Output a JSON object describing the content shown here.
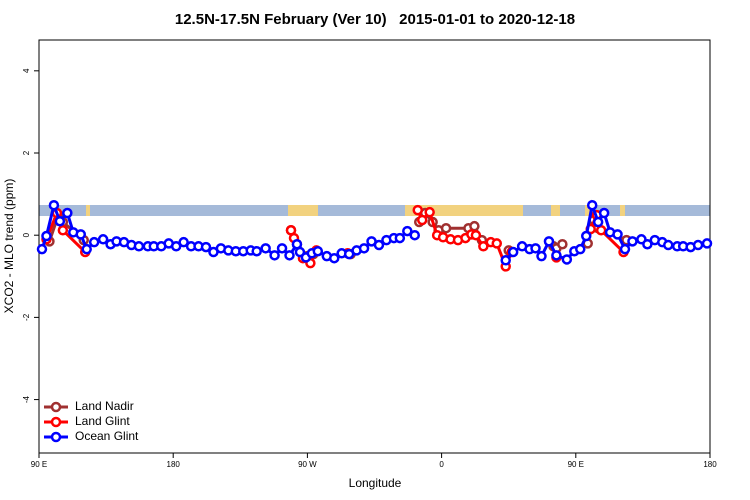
{
  "chart_data": {
    "type": "line",
    "title": "12.5N-17.5N February (Ver 10)   2015-01-01 to 2020-12-18",
    "x_label": "Longitude",
    "y_label": "XCO2 - MLO trend (ppm)",
    "xlim": [
      90,
      540
    ],
    "ylim": [
      -5.3,
      4.75
    ],
    "xticks": [
      {
        "value": 90,
        "label": "90 E"
      },
      180,
      {
        "value": 270,
        "label": "90 W"
      },
      {
        "value": 360,
        "label": "0"
      },
      {
        "value": 450,
        "label": "90 E"
      },
      180
    ],
    "yticks": [
      -4,
      -2,
      0,
      2,
      4
    ],
    "legend": "bottomleft",
    "series": [
      {
        "name": "Land Nadir",
        "color": "#a03030",
        "x": [
          97,
          103,
          106,
          120,
          null,
          259,
          263,
          270,
          274,
          null,
          299,
          null,
          345,
          349,
          354,
          358,
          363,
          378,
          382,
          387,
          null,
          405,
          null,
          435,
          437,
          441,
          null,
          458,
          462,
          465,
          484
        ],
        "values": [
          -0.15,
          0.49,
          0.32,
          -0.12,
          null,
          0.12,
          -0.22,
          -0.51,
          -0.46,
          null,
          -0.46,
          null,
          0.32,
          0.54,
          0.32,
          0.12,
          0.17,
          0.17,
          0.22,
          -0.12,
          null,
          -0.37,
          null,
          -0.27,
          -0.32,
          -0.22,
          null,
          -0.2,
          0.37,
          0.17,
          -0.12
        ]
      },
      {
        "name": "Land Glint",
        "color": "#ff0000",
        "x": [
          95,
          102,
          106,
          121,
          null,
          259,
          261,
          267,
          272,
          276,
          null,
          297,
          null,
          344,
          347,
          352,
          357,
          361,
          366,
          371,
          376,
          380,
          383,
          388,
          393,
          397,
          403,
          407,
          null,
          437,
          null,
          460,
          464,
          467,
          482
        ],
        "values": [
          -0.1,
          0.54,
          0.12,
          -0.41,
          null,
          0.12,
          -0.07,
          -0.56,
          -0.68,
          -0.37,
          null,
          -0.44,
          null,
          0.61,
          0.37,
          0.56,
          0,
          -0.05,
          -0.1,
          -0.12,
          -0.07,
          0.02,
          0,
          -0.27,
          -0.17,
          -0.2,
          -0.76,
          -0.41,
          null,
          -0.54,
          null,
          0.15,
          0.49,
          0.12,
          -0.41
        ]
      },
      {
        "name": "Ocean Glint",
        "color": "#0000ff",
        "x": [
          92,
          95,
          100,
          104,
          109,
          113,
          118,
          122,
          127,
          133,
          138,
          142,
          147,
          152,
          157,
          163,
          167,
          172,
          177,
          182,
          187,
          192,
          197,
          202,
          207,
          212,
          217,
          222,
          227,
          232,
          236,
          242,
          248,
          253,
          258,
          263,
          265,
          269,
          273,
          277,
          283,
          288,
          293,
          298,
          303,
          308,
          313,
          318,
          323,
          328,
          332,
          337,
          342,
          null,
          403,
          408,
          414,
          419,
          423,
          427,
          432,
          437,
          444,
          449,
          453,
          457,
          461,
          465,
          469,
          473,
          478,
          483,
          488,
          494,
          498,
          503,
          508,
          512,
          518,
          522,
          527,
          532,
          538
        ],
        "values": [
          -0.34,
          -0.02,
          0.73,
          0.34,
          0.54,
          0.07,
          0.02,
          -0.34,
          -0.17,
          -0.1,
          -0.22,
          -0.15,
          -0.17,
          -0.24,
          -0.27,
          -0.27,
          -0.27,
          -0.27,
          -0.2,
          -0.27,
          -0.17,
          -0.27,
          -0.27,
          -0.29,
          -0.41,
          -0.32,
          -0.37,
          -0.39,
          -0.39,
          -0.37,
          -0.39,
          -0.32,
          -0.49,
          -0.32,
          -0.49,
          -0.22,
          -0.41,
          -0.54,
          -0.44,
          -0.39,
          -0.51,
          -0.56,
          -0.44,
          -0.46,
          -0.37,
          -0.32,
          -0.15,
          -0.24,
          -0.12,
          -0.07,
          -0.07,
          0.1,
          0,
          null,
          -0.61,
          -0.41,
          -0.27,
          -0.34,
          -0.32,
          -0.51,
          -0.15,
          -0.49,
          -0.59,
          -0.39,
          -0.34,
          -0.02,
          0.73,
          0.32,
          0.54,
          0.07,
          0.02,
          -0.34,
          -0.15,
          -0.1,
          -0.22,
          -0.12,
          -0.17,
          -0.24,
          -0.27,
          -0.27,
          -0.29,
          -0.24,
          -0.2
        ]
      }
    ]
  }
}
